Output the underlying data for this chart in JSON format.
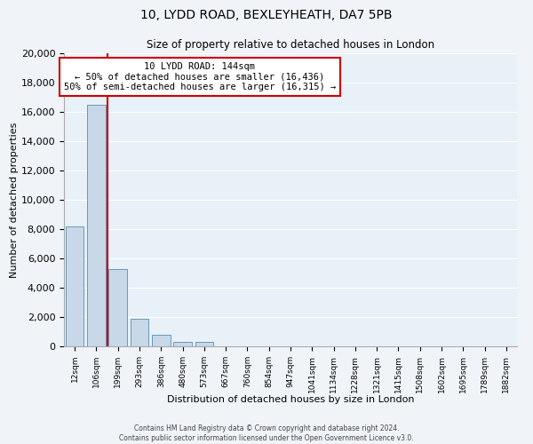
{
  "title": "10, LYDD ROAD, BEXLEYHEATH, DA7 5PB",
  "subtitle": "Size of property relative to detached houses in London",
  "xlabel": "Distribution of detached houses by size in London",
  "ylabel": "Number of detached properties",
  "categories": [
    "12sqm",
    "106sqm",
    "199sqm",
    "293sqm",
    "386sqm",
    "480sqm",
    "573sqm",
    "667sqm",
    "760sqm",
    "854sqm",
    "947sqm",
    "1041sqm",
    "1134sqm",
    "1228sqm",
    "1321sqm",
    "1415sqm",
    "1508sqm",
    "1602sqm",
    "1695sqm",
    "1789sqm",
    "1882sqm"
  ],
  "bar_values": [
    8200,
    16500,
    5300,
    1850,
    800,
    300,
    300,
    0,
    0,
    0,
    0,
    0,
    0,
    0,
    0,
    0,
    0,
    0,
    0,
    0,
    0
  ],
  "bar_color": "#c8d8e8",
  "bar_edge_color": "#6699bb",
  "property_line_color": "#cc0000",
  "annotation_title": "10 LYDD ROAD: 144sqm",
  "annotation_line1": "← 50% of detached houses are smaller (16,436)",
  "annotation_line2": "50% of semi-detached houses are larger (16,315) →",
  "annotation_box_color": "#ffffff",
  "annotation_box_edge_color": "#cc0000",
  "ylim": [
    0,
    20000
  ],
  "yticks": [
    0,
    2000,
    4000,
    6000,
    8000,
    10000,
    12000,
    14000,
    16000,
    18000,
    20000
  ],
  "footer1": "Contains HM Land Registry data © Crown copyright and database right 2024.",
  "footer2": "Contains public sector information licensed under the Open Government Licence v3.0.",
  "bg_color": "#f0f4f8",
  "plot_bg_color": "#e8f0f8"
}
